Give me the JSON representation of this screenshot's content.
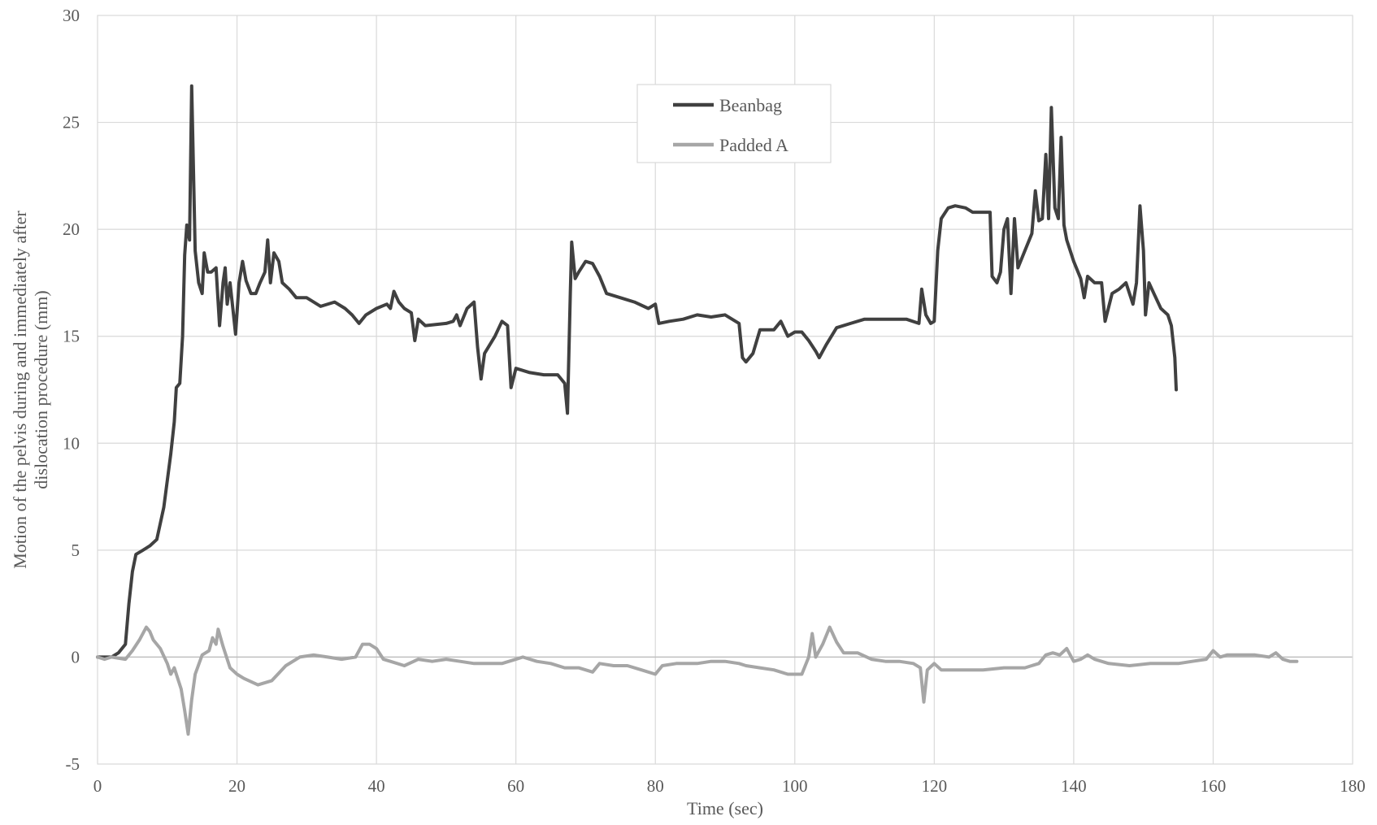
{
  "chart_data": {
    "type": "line",
    "xlabel": "Time (sec)",
    "ylabel_lines": [
      "Motion of the pelvis during and immediately after",
      "dislocation procedure (mm)"
    ],
    "xlim": [
      0,
      180
    ],
    "ylim": [
      -5,
      30
    ],
    "x_ticks": [
      0,
      20,
      40,
      60,
      80,
      100,
      120,
      140,
      160,
      180
    ],
    "y_ticks": [
      -5,
      0,
      5,
      10,
      15,
      20,
      25,
      30
    ],
    "grid": true,
    "legend_position": "top-center",
    "series": [
      {
        "name": "Beanbag",
        "color": "#404040",
        "points": [
          [
            0,
            0
          ],
          [
            2,
            0
          ],
          [
            3,
            0.2
          ],
          [
            4,
            0.6
          ],
          [
            4.5,
            2.5
          ],
          [
            5,
            4
          ],
          [
            5.5,
            4.8
          ],
          [
            6.5,
            5.0
          ],
          [
            7.5,
            5.2
          ],
          [
            8.5,
            5.5
          ],
          [
            9.5,
            7
          ],
          [
            10.5,
            9.5
          ],
          [
            11,
            11
          ],
          [
            11.3,
            12.6
          ],
          [
            11.8,
            12.8
          ],
          [
            12.2,
            15
          ],
          [
            12.5,
            18.8
          ],
          [
            12.8,
            20.2
          ],
          [
            13.2,
            19.5
          ],
          [
            13.5,
            26.7
          ],
          [
            14,
            19
          ],
          [
            14.5,
            17.5
          ],
          [
            15,
            17
          ],
          [
            15.3,
            18.9
          ],
          [
            15.8,
            18
          ],
          [
            16.3,
            18
          ],
          [
            17,
            18.2
          ],
          [
            17.5,
            15.5
          ],
          [
            18,
            17.5
          ],
          [
            18.3,
            18.2
          ],
          [
            18.6,
            16.5
          ],
          [
            19,
            17.5
          ],
          [
            19.5,
            16
          ],
          [
            19.8,
            15.1
          ],
          [
            20.3,
            17.5
          ],
          [
            20.8,
            18.5
          ],
          [
            21.3,
            17.6
          ],
          [
            22,
            17
          ],
          [
            22.7,
            17
          ],
          [
            23.3,
            17.5
          ],
          [
            24,
            18
          ],
          [
            24.4,
            19.5
          ],
          [
            24.8,
            17.5
          ],
          [
            25.3,
            18.9
          ],
          [
            26,
            18.5
          ],
          [
            26.5,
            17.5
          ],
          [
            27.5,
            17.2
          ],
          [
            28.5,
            16.8
          ],
          [
            30,
            16.8
          ],
          [
            32,
            16.4
          ],
          [
            34,
            16.6
          ],
          [
            35.5,
            16.3
          ],
          [
            36.5,
            16
          ],
          [
            37.5,
            15.6
          ],
          [
            38.5,
            16
          ],
          [
            40,
            16.3
          ],
          [
            41.5,
            16.5
          ],
          [
            42,
            16.3
          ],
          [
            42.5,
            17.1
          ],
          [
            43.2,
            16.6
          ],
          [
            44,
            16.3
          ],
          [
            45,
            16.1
          ],
          [
            45.5,
            14.8
          ],
          [
            46,
            15.8
          ],
          [
            47,
            15.5
          ],
          [
            50,
            15.6
          ],
          [
            51,
            15.7
          ],
          [
            51.5,
            16
          ],
          [
            52,
            15.5
          ],
          [
            53,
            16.3
          ],
          [
            54,
            16.6
          ],
          [
            54.5,
            14.5
          ],
          [
            55,
            13
          ],
          [
            55.5,
            14.2
          ],
          [
            57,
            15
          ],
          [
            58,
            15.7
          ],
          [
            58.8,
            15.5
          ],
          [
            59.3,
            12.6
          ],
          [
            60,
            13.5
          ],
          [
            62,
            13.3
          ],
          [
            64,
            13.2
          ],
          [
            66,
            13.2
          ],
          [
            67,
            12.8
          ],
          [
            67.4,
            11.4
          ],
          [
            67.8,
            17
          ],
          [
            68,
            19.4
          ],
          [
            68.5,
            17.7
          ],
          [
            69,
            18
          ],
          [
            70,
            18.5
          ],
          [
            71,
            18.4
          ],
          [
            72,
            17.8
          ],
          [
            73,
            17
          ],
          [
            75,
            16.8
          ],
          [
            77,
            16.6
          ],
          [
            79,
            16.3
          ],
          [
            80,
            16.5
          ],
          [
            80.5,
            15.6
          ],
          [
            82,
            15.7
          ],
          [
            84,
            15.8
          ],
          [
            86,
            16
          ],
          [
            88,
            15.9
          ],
          [
            90,
            16
          ],
          [
            91,
            15.8
          ],
          [
            92,
            15.6
          ],
          [
            92.5,
            14
          ],
          [
            93,
            13.8
          ],
          [
            94,
            14.2
          ],
          [
            95,
            15.3
          ],
          [
            97,
            15.3
          ],
          [
            98,
            15.7
          ],
          [
            99,
            15
          ],
          [
            100,
            15.2
          ],
          [
            101,
            15.2
          ],
          [
            102,
            14.8
          ],
          [
            103,
            14.3
          ],
          [
            103.5,
            14
          ],
          [
            104.5,
            14.6
          ],
          [
            106,
            15.4
          ],
          [
            108,
            15.6
          ],
          [
            110,
            15.8
          ],
          [
            113,
            15.8
          ],
          [
            116,
            15.8
          ],
          [
            117.8,
            15.6
          ],
          [
            118.2,
            17.2
          ],
          [
            118.8,
            16
          ],
          [
            119.5,
            15.6
          ],
          [
            120,
            15.7
          ],
          [
            120.5,
            19
          ],
          [
            121,
            20.5
          ],
          [
            122,
            21
          ],
          [
            123,
            21.1
          ],
          [
            124.5,
            21
          ],
          [
            125.5,
            20.8
          ],
          [
            128,
            20.8
          ],
          [
            128.3,
            17.8
          ],
          [
            129,
            17.5
          ],
          [
            129.5,
            18
          ],
          [
            130,
            20
          ],
          [
            130.5,
            20.5
          ],
          [
            131,
            17
          ],
          [
            131.5,
            20.5
          ],
          [
            132,
            18.2
          ],
          [
            133,
            19
          ],
          [
            134,
            19.8
          ],
          [
            134.5,
            21.8
          ],
          [
            135,
            20.4
          ],
          [
            135.5,
            20.5
          ],
          [
            136,
            23.5
          ],
          [
            136.4,
            20.5
          ],
          [
            136.8,
            25.7
          ],
          [
            137.3,
            21
          ],
          [
            137.8,
            20.5
          ],
          [
            138.2,
            24.3
          ],
          [
            138.6,
            20.2
          ],
          [
            139,
            19.5
          ],
          [
            140,
            18.5
          ],
          [
            141,
            17.7
          ],
          [
            141.5,
            16.8
          ],
          [
            142,
            17.8
          ],
          [
            143,
            17.5
          ],
          [
            144,
            17.5
          ],
          [
            144.5,
            15.7
          ],
          [
            145.5,
            17
          ],
          [
            146.5,
            17.2
          ],
          [
            147.5,
            17.5
          ],
          [
            148.5,
            16.5
          ],
          [
            149,
            17.5
          ],
          [
            149.5,
            21.1
          ],
          [
            150,
            19
          ],
          [
            150.3,
            16
          ],
          [
            150.8,
            17.5
          ],
          [
            151.5,
            17
          ],
          [
            152.5,
            16.3
          ],
          [
            153.5,
            16
          ],
          [
            154,
            15.5
          ],
          [
            154.5,
            14
          ],
          [
            154.7,
            12.5
          ]
        ]
      },
      {
        "name": "Padded A",
        "color": "#a6a6a6",
        "points": [
          [
            0,
            0
          ],
          [
            1,
            -0.1
          ],
          [
            2,
            0
          ],
          [
            4,
            -0.1
          ],
          [
            5,
            0.3
          ],
          [
            6,
            0.8
          ],
          [
            7,
            1.4
          ],
          [
            7.5,
            1.2
          ],
          [
            8,
            0.8
          ],
          [
            9,
            0.4
          ],
          [
            10,
            -0.3
          ],
          [
            10.5,
            -0.8
          ],
          [
            11,
            -0.5
          ],
          [
            12,
            -1.5
          ],
          [
            12.5,
            -2.5
          ],
          [
            13,
            -3.6
          ],
          [
            13.5,
            -2
          ],
          [
            14,
            -0.8
          ],
          [
            15,
            0.1
          ],
          [
            16,
            0.3
          ],
          [
            16.5,
            0.9
          ],
          [
            17,
            0.6
          ],
          [
            17.3,
            1.3
          ],
          [
            18,
            0.5
          ],
          [
            19,
            -0.5
          ],
          [
            20,
            -0.8
          ],
          [
            21,
            -1
          ],
          [
            23,
            -1.3
          ],
          [
            25,
            -1.1
          ],
          [
            27,
            -0.4
          ],
          [
            29,
            0
          ],
          [
            31,
            0.1
          ],
          [
            33,
            0
          ],
          [
            35,
            -0.1
          ],
          [
            37,
            0
          ],
          [
            38,
            0.6
          ],
          [
            39,
            0.6
          ],
          [
            40,
            0.4
          ],
          [
            41,
            -0.1
          ],
          [
            42,
            -0.2
          ],
          [
            44,
            -0.4
          ],
          [
            46,
            -0.1
          ],
          [
            48,
            -0.2
          ],
          [
            50,
            -0.1
          ],
          [
            52,
            -0.2
          ],
          [
            54,
            -0.3
          ],
          [
            56,
            -0.3
          ],
          [
            58,
            -0.3
          ],
          [
            60,
            -0.1
          ],
          [
            61,
            0
          ],
          [
            63,
            -0.2
          ],
          [
            65,
            -0.3
          ],
          [
            67,
            -0.5
          ],
          [
            69,
            -0.5
          ],
          [
            71,
            -0.7
          ],
          [
            72,
            -0.3
          ],
          [
            74,
            -0.4
          ],
          [
            76,
            -0.4
          ],
          [
            78,
            -0.6
          ],
          [
            80,
            -0.8
          ],
          [
            81,
            -0.4
          ],
          [
            83,
            -0.3
          ],
          [
            86,
            -0.3
          ],
          [
            88,
            -0.2
          ],
          [
            90,
            -0.2
          ],
          [
            92,
            -0.3
          ],
          [
            93,
            -0.4
          ],
          [
            95,
            -0.5
          ],
          [
            97,
            -0.6
          ],
          [
            99,
            -0.8
          ],
          [
            101,
            -0.8
          ],
          [
            102,
            0
          ],
          [
            102.5,
            1.1
          ],
          [
            103,
            0
          ],
          [
            104,
            0.6
          ],
          [
            105,
            1.4
          ],
          [
            106,
            0.7
          ],
          [
            107,
            0.2
          ],
          [
            109,
            0.2
          ],
          [
            111,
            -0.1
          ],
          [
            113,
            -0.2
          ],
          [
            115,
            -0.2
          ],
          [
            117,
            -0.3
          ],
          [
            118,
            -0.5
          ],
          [
            118.5,
            -2.1
          ],
          [
            119,
            -0.6
          ],
          [
            120,
            -0.3
          ],
          [
            121,
            -0.6
          ],
          [
            124,
            -0.6
          ],
          [
            127,
            -0.6
          ],
          [
            130,
            -0.5
          ],
          [
            133,
            -0.5
          ],
          [
            135,
            -0.3
          ],
          [
            136,
            0.1
          ],
          [
            137,
            0.2
          ],
          [
            138,
            0.1
          ],
          [
            139,
            0.4
          ],
          [
            140,
            -0.2
          ],
          [
            141,
            -0.1
          ],
          [
            142,
            0.1
          ],
          [
            143,
            -0.1
          ],
          [
            145,
            -0.3
          ],
          [
            148,
            -0.4
          ],
          [
            151,
            -0.3
          ],
          [
            153,
            -0.3
          ],
          [
            155,
            -0.3
          ],
          [
            157,
            -0.2
          ],
          [
            159,
            -0.1
          ],
          [
            160,
            0.3
          ],
          [
            161,
            0
          ],
          [
            162,
            0.1
          ],
          [
            164,
            0.1
          ],
          [
            166,
            0.1
          ],
          [
            168,
            0
          ],
          [
            169,
            0.2
          ],
          [
            170,
            -0.1
          ],
          [
            171,
            -0.2
          ],
          [
            172,
            -0.2
          ]
        ]
      }
    ]
  }
}
